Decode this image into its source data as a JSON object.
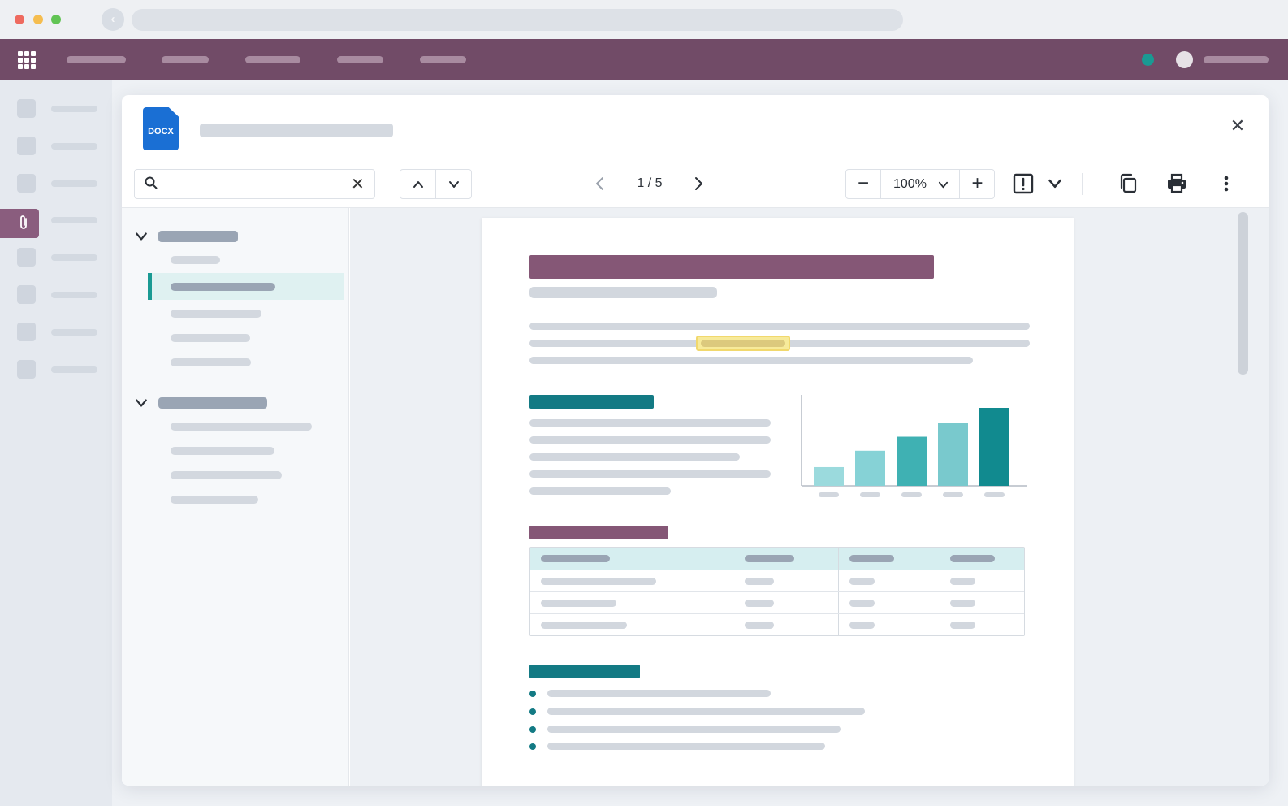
{
  "colors": {
    "brand": "#714b67",
    "accent": "#1a9a93",
    "heading_purple": "#855776",
    "heading_teal": "#137a84",
    "highlight": "#f7ea9a",
    "file_badge": "#1a6fd4"
  },
  "browser": {
    "icons": [
      "close-dot",
      "minimize-dot",
      "maximize-dot",
      "back-icon"
    ]
  },
  "topbar": {
    "icons": [
      "apps-grid-icon",
      "status-dot",
      "avatar"
    ]
  },
  "sidebar": {
    "active_item_icon": "paperclip-icon"
  },
  "viewer": {
    "file_type": "DOCX",
    "search": {
      "value": "",
      "placeholder": ""
    },
    "pagination": {
      "current": 1,
      "total": 5,
      "label": "1 / 5"
    },
    "zoom": {
      "label": "100%"
    },
    "icons": [
      "search-icon",
      "clear-icon",
      "chevron-up-icon",
      "chevron-down-icon",
      "chevron-left-icon",
      "chevron-right-icon",
      "minus-icon",
      "plus-icon",
      "fit-page-icon",
      "copy-icon",
      "print-icon",
      "more-vertical-icon",
      "close-icon"
    ],
    "glyphs": {
      "close": "✕",
      "clear": "✕",
      "minus": "−",
      "plus": "+"
    }
  },
  "document": {
    "chart_bars": [
      0.24,
      0.45,
      0.63,
      0.81,
      1.0
    ]
  }
}
